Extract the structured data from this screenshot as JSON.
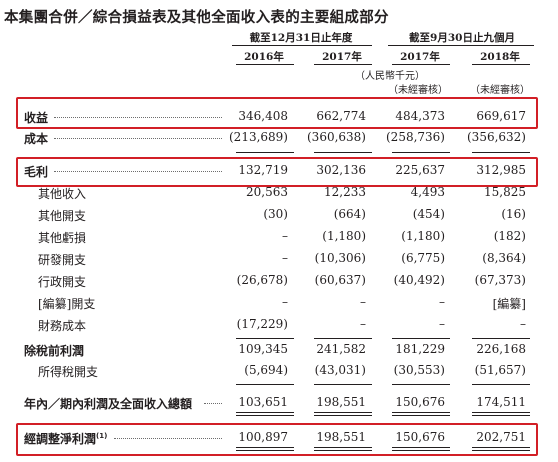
{
  "title": "本集團合併／綜合損益表及其他全面收入表的主要組成部分",
  "header": {
    "group_year": "截至12月31日止年度",
    "group_nine": "截至9月30日止九個月",
    "col_2016": "2016年",
    "col_2017": "2017年",
    "col_2017_9m": "2017年",
    "col_2018_9m": "2018年",
    "currency_note": "（人民幣千元）",
    "unaudited_1": "（未經審核）",
    "unaudited_2": "（未經審核）"
  },
  "rows": [
    {
      "label": "收益",
      "values": [
        "346,408",
        "662,774",
        "484,373",
        "669,617"
      ]
    },
    {
      "label": "成本",
      "values": [
        "(213,689)",
        "(360,638)",
        "(258,736)",
        "(356,632)"
      ]
    },
    {
      "label": "毛利",
      "values": [
        "132,719",
        "302,136",
        "225,637",
        "312,985"
      ]
    },
    {
      "label": "其他收入",
      "values": [
        "20,563",
        "12,233",
        "4,493",
        "15,825"
      ]
    },
    {
      "label": "其他開支",
      "values": [
        "(30)",
        "(664)",
        "(454)",
        "(16)"
      ]
    },
    {
      "label": "其他虧損",
      "values": [
        "–",
        "(1,180)",
        "(1,180)",
        "(182)"
      ]
    },
    {
      "label": "研發開支",
      "values": [
        "–",
        "(10,306)",
        "(6,775)",
        "(8,364)"
      ]
    },
    {
      "label": "行政開支",
      "values": [
        "(26,678)",
        "(60,637)",
        "(40,492)",
        "(67,373)"
      ]
    },
    {
      "label": "[編纂]開支",
      "values": [
        "–",
        "–",
        "–",
        "[編纂]"
      ]
    },
    {
      "label": "財務成本",
      "values": [
        "(17,229)",
        "–",
        "–",
        "–"
      ]
    },
    {
      "label": "除稅前利潤",
      "values": [
        "109,345",
        "241,582",
        "181,229",
        "226,168"
      ]
    },
    {
      "label": "所得稅開支",
      "values": [
        "(5,694)",
        "(43,031)",
        "(30,553)",
        "(51,657)"
      ]
    },
    {
      "label": "年內／期內利潤及全面收入總額",
      "values": [
        "103,651",
        "198,551",
        "150,676",
        "174,511"
      ]
    },
    {
      "label": "經調整淨利潤",
      "footnote": "(1)",
      "values": [
        "100,897",
        "198,551",
        "150,676",
        "202,751"
      ]
    }
  ]
}
